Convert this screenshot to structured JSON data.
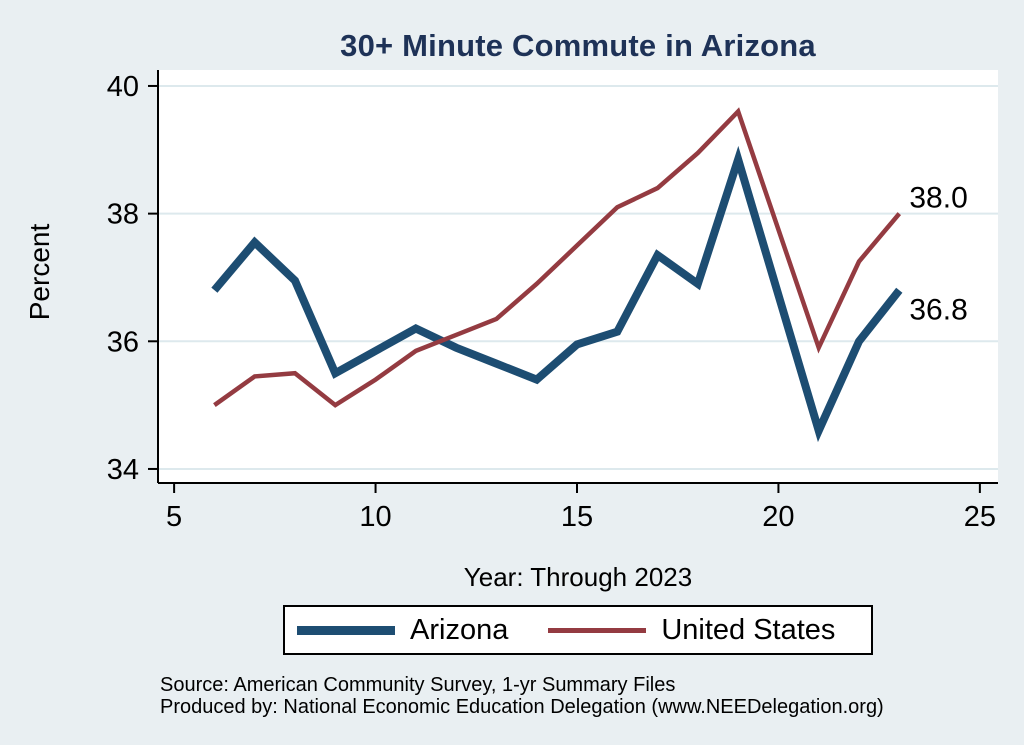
{
  "title": "30+ Minute Commute in Arizona",
  "colors": {
    "background": "#e9eff2",
    "plot_background": "#ffffff",
    "gridline": "#dde9ed",
    "axis": "#000000",
    "title_text": "#1e3257",
    "arizona_line": "#1d4d72",
    "united_states_line": "#943b41",
    "tick_text": "#000000"
  },
  "chart_data": {
    "type": "line",
    "title": "30+ Minute Commute in Arizona",
    "xlabel": "Year: Through 2023",
    "ylabel": "Percent",
    "x_ticks": [
      5,
      10,
      15,
      20,
      25
    ],
    "y_ticks": [
      34,
      36,
      38,
      40
    ],
    "xlim": [
      4.6,
      25.45
    ],
    "ylim": [
      33.78,
      40.25
    ],
    "grid": "horizontal",
    "legend_position": "bottom",
    "x": [
      6,
      7,
      8,
      9,
      10,
      11,
      12,
      13,
      14,
      15,
      16,
      17,
      18,
      19,
      21,
      22,
      23
    ],
    "series": [
      {
        "name": "Arizona",
        "color": "#1d4d72",
        "line_width": 8,
        "values": [
          36.8,
          37.55,
          36.95,
          35.5,
          35.85,
          36.2,
          35.9,
          35.65,
          35.4,
          35.95,
          36.15,
          37.35,
          36.9,
          38.85,
          34.6,
          36.0,
          36.8
        ]
      },
      {
        "name": "United States",
        "color": "#943b41",
        "line_width": 4.5,
        "values": [
          35.0,
          35.45,
          35.5,
          35.0,
          35.4,
          35.85,
          36.1,
          36.35,
          36.9,
          37.5,
          38.1,
          38.4,
          38.95,
          39.6,
          35.9,
          37.25,
          38.0
        ]
      }
    ],
    "end_labels": [
      {
        "text": "38.0",
        "x": 23.25,
        "y": 38.25,
        "series": "United States"
      },
      {
        "text": "36.8",
        "x": 23.25,
        "y": 36.5,
        "series": "Arizona"
      }
    ]
  },
  "legend": {
    "items": [
      {
        "label": "Arizona"
      },
      {
        "label": "United States"
      }
    ]
  },
  "footer": {
    "source": "Source: American Community Survey, 1-yr Summary Files",
    "produced_by": "Produced by: National Economic Education Delegation (www.NEEDelegation.org)"
  }
}
